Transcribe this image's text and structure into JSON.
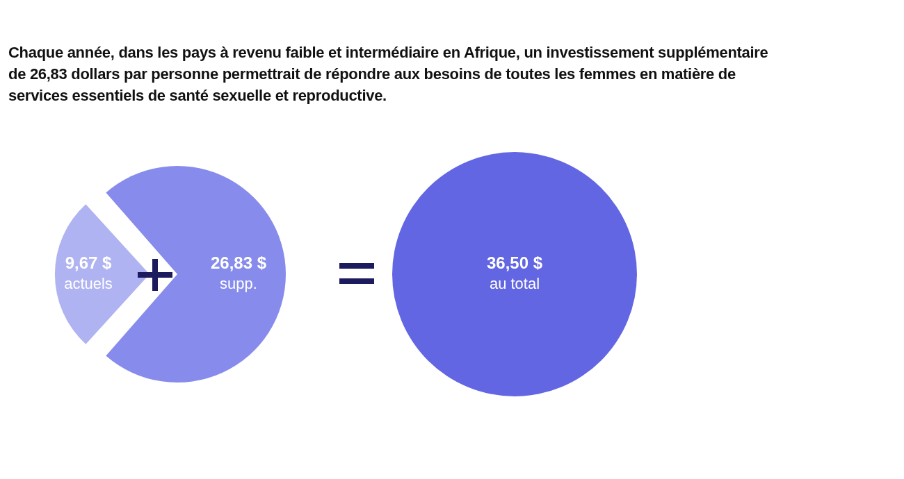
{
  "chart_data": [
    {
      "type": "pie",
      "title": "Chaque année, dans les pays à revenu faible et intermédiaire en Afrique, un investissement supplémentaire de 26,83 dollars par personne permettrait de répondre aux besoins de toutes les femmes en matière de services essentiels de santé sexuelle et reproductive.",
      "categories": [
        "actuels",
        "supp."
      ],
      "values": [
        9.67,
        26.83
      ],
      "colors": [
        "#b0b3f1",
        "#878cec"
      ],
      "value_labels": [
        "9,67 $",
        "26,83 $"
      ]
    },
    {
      "type": "pie",
      "categories": [
        "au total"
      ],
      "values": [
        36.5
      ],
      "colors": [
        "#6366e3"
      ],
      "value_labels": [
        "36,50 $"
      ]
    }
  ]
}
